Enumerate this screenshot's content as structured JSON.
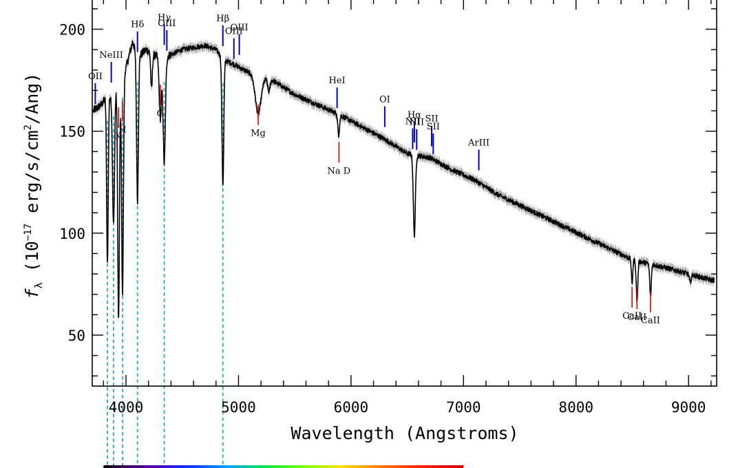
{
  "chart_data": {
    "type": "line",
    "title": "",
    "xlabel": "Wavelength (Angstroms)",
    "ylabel_parts": {
      "symbol": "f",
      "subscript": "λ",
      "prefix": " (10",
      "exponent": "−17",
      "middle": " erg/s/cm",
      "exponent2": "2",
      "suffix": "/Ang)"
    },
    "xlim": [
      3700,
      9250
    ],
    "ylim": [
      25,
      215
    ],
    "xticks": [
      4000,
      5000,
      6000,
      7000,
      8000,
      9000
    ],
    "xtick_labels": [
      "4000",
      "5000",
      "6000",
      "7000",
      "8000",
      "9000"
    ],
    "yticks": [
      50,
      100,
      150,
      200
    ],
    "ytick_labels": [
      "50",
      "100",
      "150",
      "200"
    ],
    "series": [
      {
        "color": "#000000",
        "error_band_color": "#9a9a9a",
        "continuum": [
          [
            3710,
            160
          ],
          [
            3780,
            163
          ],
          [
            3830,
            167
          ],
          [
            3880,
            168
          ],
          [
            3940,
            176
          ],
          [
            4000,
            181
          ],
          [
            4060,
            194
          ],
          [
            4100,
            186
          ],
          [
            4180,
            190
          ],
          [
            4260,
            187
          ],
          [
            4330,
            186
          ],
          [
            4420,
            188
          ],
          [
            4500,
            190
          ],
          [
            4600,
            191
          ],
          [
            4700,
            192
          ],
          [
            4800,
            190
          ],
          [
            4870,
            185
          ],
          [
            4950,
            183
          ],
          [
            5050,
            180
          ],
          [
            5150,
            177
          ],
          [
            5300,
            175
          ],
          [
            5500,
            168
          ],
          [
            5700,
            163
          ],
          [
            5900,
            158
          ],
          [
            6100,
            152
          ],
          [
            6300,
            146
          ],
          [
            6500,
            139
          ],
          [
            6700,
            137
          ],
          [
            6900,
            131
          ],
          [
            7100,
            126
          ],
          [
            7300,
            119
          ],
          [
            7600,
            111
          ],
          [
            7900,
            103
          ],
          [
            8200,
            95
          ],
          [
            8500,
            87
          ],
          [
            8800,
            83
          ],
          [
            9000,
            80
          ],
          [
            9200,
            77
          ]
        ],
        "absorption": [
          [
            3835,
            82,
            7
          ],
          [
            3889,
            65,
            9
          ],
          [
            3934,
            118,
            8
          ],
          [
            3969,
            108,
            8
          ],
          [
            4102,
            70,
            8
          ],
          [
            4227,
            18,
            7
          ],
          [
            4305,
            30,
            10
          ],
          [
            4340,
            52,
            10
          ],
          [
            4861,
            62,
            8
          ],
          [
            5175,
            18,
            25
          ],
          [
            5270,
            6,
            10
          ],
          [
            5890,
            10,
            8
          ],
          [
            6563,
            40,
            9
          ],
          [
            8498,
            12,
            6
          ],
          [
            8542,
            20,
            7
          ],
          [
            8662,
            16,
            7
          ],
          [
            9015,
            4,
            8
          ]
        ]
      }
    ],
    "emission_lines": [
      {
        "label": "OII",
        "x": 3727
      },
      {
        "label": "NeIII",
        "x": 3869
      },
      {
        "label": "Hδ",
        "x": 4102
      },
      {
        "label": "Hγ",
        "x": 4340
      },
      {
        "label": "OIII",
        "x": 4363
      },
      {
        "label": "Hβ",
        "x": 4861
      },
      {
        "label": "OIII",
        "x": 4959
      },
      {
        "label": "OIII",
        "x": 5007
      },
      {
        "label": "HeI",
        "x": 5876
      },
      {
        "label": "OI",
        "x": 6300
      },
      {
        "label": "NII",
        "x": 6548
      },
      {
        "label": "Hα",
        "x": 6563
      },
      {
        "label": "NII",
        "x": 6584
      },
      {
        "label": "SII",
        "x": 6717
      },
      {
        "label": "SII",
        "x": 6731
      },
      {
        "label": "ArIII",
        "x": 7136
      }
    ],
    "absorption_lines": [
      {
        "label": "K",
        "x": 3934
      },
      {
        "label": "H",
        "x": 3969
      },
      {
        "label": "G",
        "x": 4305
      },
      {
        "label": "Mg",
        "x": 5175
      },
      {
        "label": "Na D",
        "x": 5893
      },
      {
        "label": "CaII",
        "x": 8498
      },
      {
        "label": "CaII",
        "x": 8542
      },
      {
        "label": "CaII",
        "x": 8662
      }
    ],
    "balmer_lines": [
      3835,
      3889,
      3970,
      4102,
      4340,
      4861
    ],
    "emission_color": "#0000cc",
    "absorption_color": "#dd0000",
    "balmer_color": "#2aa8c8",
    "color_bar_range": [
      3800,
      7000
    ]
  }
}
